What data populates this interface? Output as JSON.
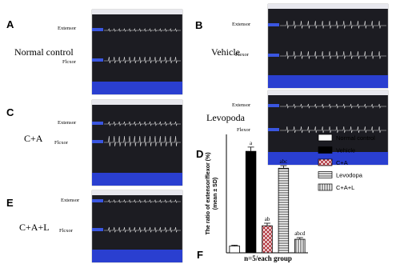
{
  "panels": [
    {
      "letter": "A",
      "group": "Normal control",
      "upper": "Extensor",
      "lower": "Flcxor"
    },
    {
      "letter": "B",
      "group": "Vehicle",
      "upper": "Extensor",
      "lower": "Flexor"
    },
    {
      "letter": "C",
      "group": "C+A",
      "upper": "Extensor",
      "lower": "Flcxor"
    },
    {
      "letter": "D",
      "group": "Levopoda",
      "upper": "Extensor",
      "lower": "Flexor"
    },
    {
      "letter": "E",
      "group": "C+A+L",
      "upper": "Extensor",
      "lower": "Flcxor"
    }
  ],
  "chart_data": {
    "type": "bar",
    "panel_letter": "F",
    "ylabel": "The ratio of extensor/flexor (%)\n(mean ± SD)",
    "xlabel": "n=5/each group",
    "categories": [
      "Normal control",
      "Vehicle",
      "C+A",
      "Levodopa",
      "C+A+L"
    ],
    "values": [
      8,
      120,
      32,
      100,
      16
    ],
    "errors": [
      1,
      5,
      3,
      3,
      2
    ],
    "annotations": [
      null,
      "a",
      "ab",
      "abc",
      "abcd"
    ],
    "patterns": [
      "none",
      "solid",
      "crosshatch",
      "hlines",
      "vlines"
    ],
    "color": "#000000",
    "ylim": [
      0,
      140
    ]
  }
}
